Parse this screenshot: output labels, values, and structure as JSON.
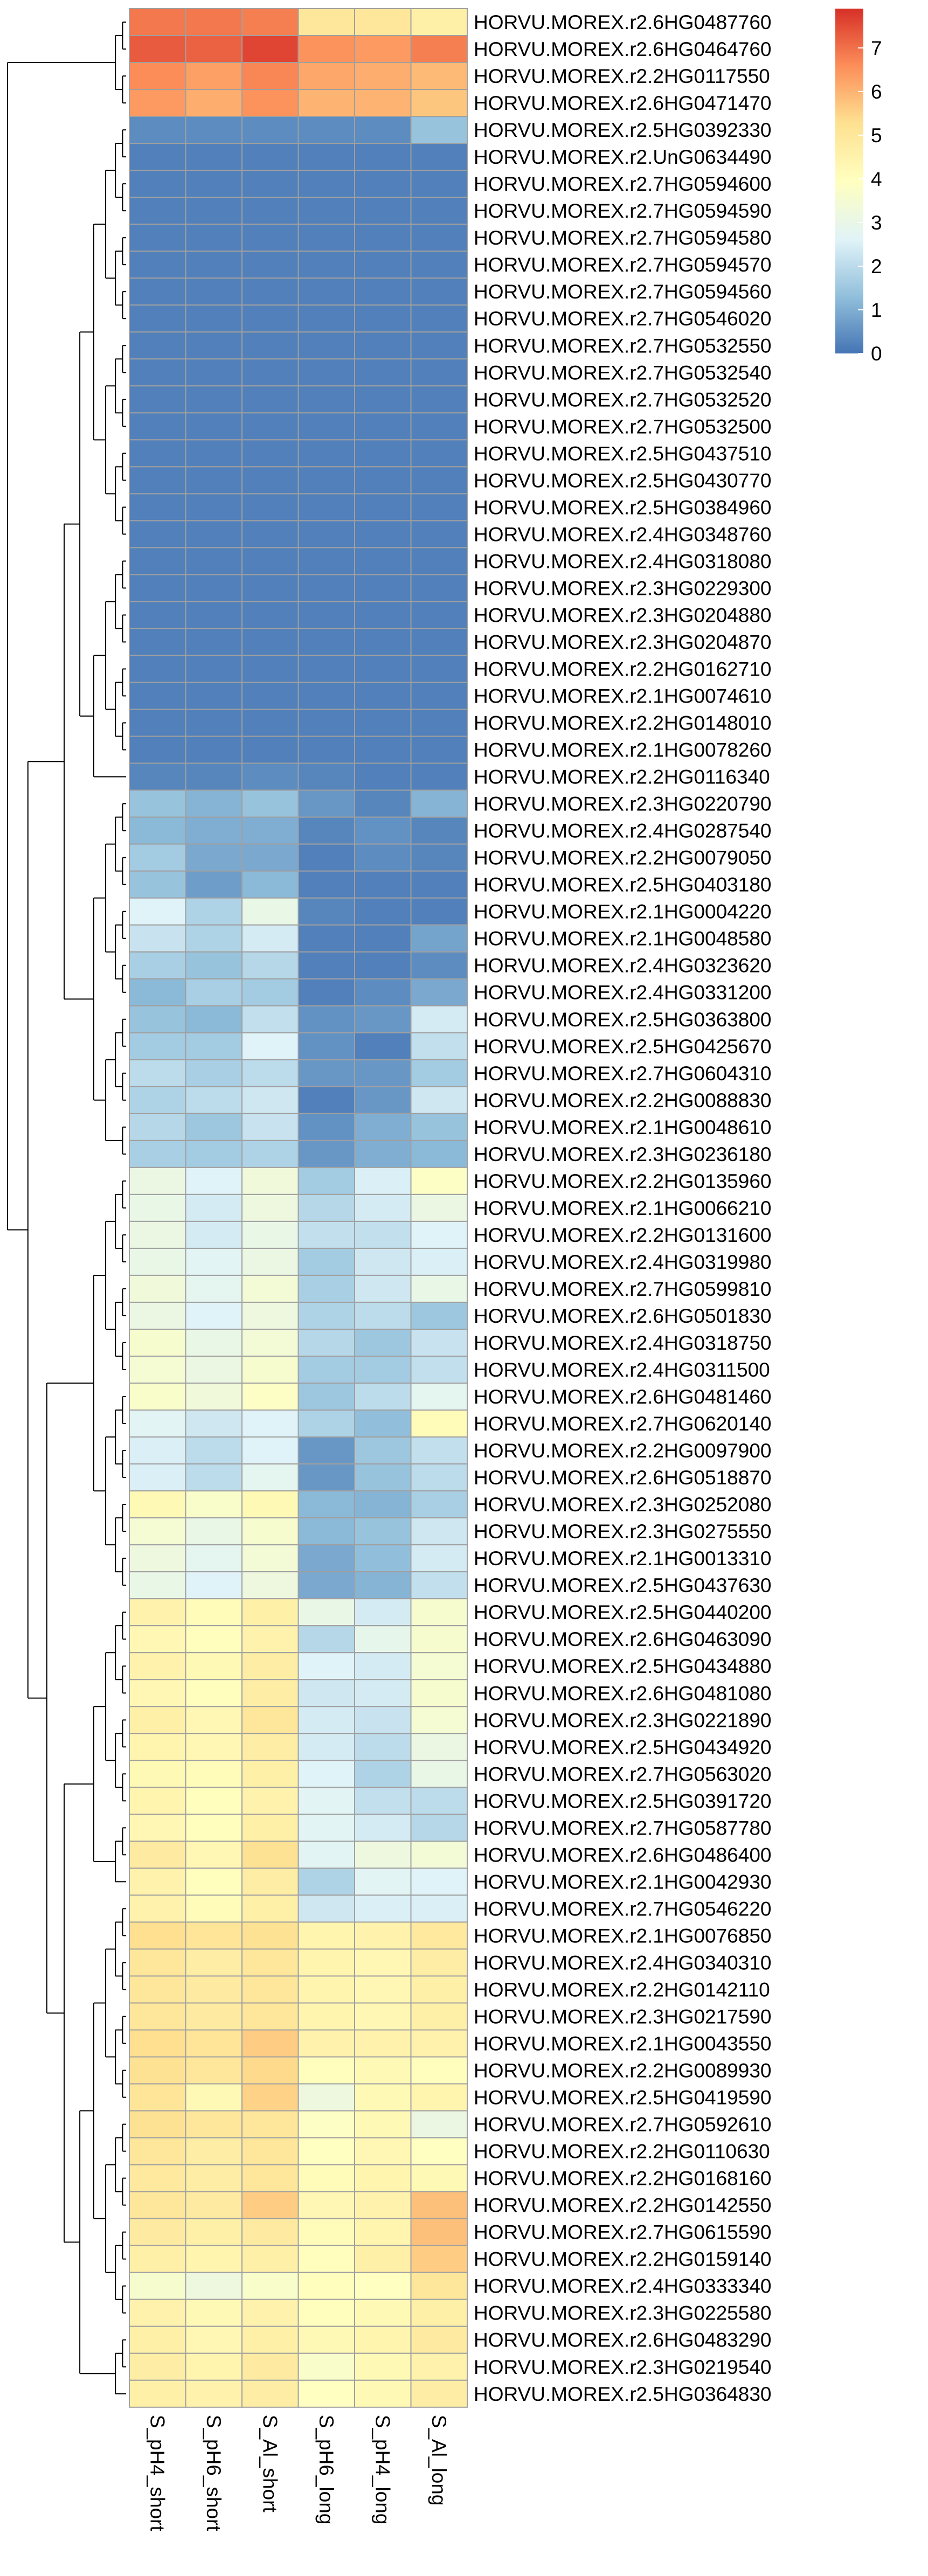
{
  "chart_data": {
    "type": "heatmap",
    "title": "",
    "columns": [
      "S_pH4_short",
      "S_pH6_short",
      "S_Al_short",
      "S_pH6_long",
      "S_pH4_long",
      "S_Al_long"
    ],
    "rows": [
      "HORVU.MOREX.r2.6HG0487760",
      "HORVU.MOREX.r2.6HG0464760",
      "HORVU.MOREX.r2.2HG0117550",
      "HORVU.MOREX.r2.6HG0471470",
      "HORVU.MOREX.r2.5HG0392330",
      "HORVU.MOREX.r2.UnG0634490",
      "HORVU.MOREX.r2.7HG0594600",
      "HORVU.MOREX.r2.7HG0594590",
      "HORVU.MOREX.r2.7HG0594580",
      "HORVU.MOREX.r2.7HG0594570",
      "HORVU.MOREX.r2.7HG0594560",
      "HORVU.MOREX.r2.7HG0546020",
      "HORVU.MOREX.r2.7HG0532550",
      "HORVU.MOREX.r2.7HG0532540",
      "HORVU.MOREX.r2.7HG0532520",
      "HORVU.MOREX.r2.7HG0532500",
      "HORVU.MOREX.r2.5HG0437510",
      "HORVU.MOREX.r2.5HG0430770",
      "HORVU.MOREX.r2.5HG0384960",
      "HORVU.MOREX.r2.4HG0348760",
      "HORVU.MOREX.r2.4HG0318080",
      "HORVU.MOREX.r2.3HG0229300",
      "HORVU.MOREX.r2.3HG0204880",
      "HORVU.MOREX.r2.3HG0204870",
      "HORVU.MOREX.r2.2HG0162710",
      "HORVU.MOREX.r2.1HG0074610",
      "HORVU.MOREX.r2.2HG0148010",
      "HORVU.MOREX.r2.1HG0078260",
      "HORVU.MOREX.r2.2HG0116340",
      "HORVU.MOREX.r2.3HG0220790",
      "HORVU.MOREX.r2.4HG0287540",
      "HORVU.MOREX.r2.2HG0079050",
      "HORVU.MOREX.r2.5HG0403180",
      "HORVU.MOREX.r2.1HG0004220",
      "HORVU.MOREX.r2.1HG0048580",
      "HORVU.MOREX.r2.4HG0323620",
      "HORVU.MOREX.r2.4HG0331200",
      "HORVU.MOREX.r2.5HG0363800",
      "HORVU.MOREX.r2.5HG0425670",
      "HORVU.MOREX.r2.7HG0604310",
      "HORVU.MOREX.r2.2HG0088830",
      "HORVU.MOREX.r2.1HG0048610",
      "HORVU.MOREX.r2.3HG0236180",
      "HORVU.MOREX.r2.2HG0135960",
      "HORVU.MOREX.r2.1HG0066210",
      "HORVU.MOREX.r2.2HG0131600",
      "HORVU.MOREX.r2.4HG0319980",
      "HORVU.MOREX.r2.7HG0599810",
      "HORVU.MOREX.r2.6HG0501830",
      "HORVU.MOREX.r2.4HG0318750",
      "HORVU.MOREX.r2.4HG0311500",
      "HORVU.MOREX.r2.6HG0481460",
      "HORVU.MOREX.r2.7HG0620140",
      "HORVU.MOREX.r2.2HG0097900",
      "HORVU.MOREX.r2.6HG0518870",
      "HORVU.MOREX.r2.3HG0252080",
      "HORVU.MOREX.r2.3HG0275550",
      "HORVU.MOREX.r2.1HG0013310",
      "HORVU.MOREX.r2.5HG0437630",
      "HORVU.MOREX.r2.5HG0440200",
      "HORVU.MOREX.r2.6HG0463090",
      "HORVU.MOREX.r2.5HG0434880",
      "HORVU.MOREX.r2.6HG0481080",
      "HORVU.MOREX.r2.3HG0221890",
      "HORVU.MOREX.r2.5HG0434920",
      "HORVU.MOREX.r2.7HG0563020",
      "HORVU.MOREX.r2.5HG0391720",
      "HORVU.MOREX.r2.7HG0587780",
      "HORVU.MOREX.r2.6HG0486400",
      "HORVU.MOREX.r2.1HG0042930",
      "HORVU.MOREX.r2.7HG0546220",
      "HORVU.MOREX.r2.1HG0076850",
      "HORVU.MOREX.r2.4HG0340310",
      "HORVU.MOREX.r2.2HG0142110",
      "HORVU.MOREX.r2.3HG0217590",
      "HORVU.MOREX.r2.1HG0043550",
      "HORVU.MOREX.r2.2HG0089930",
      "HORVU.MOREX.r2.5HG0419590",
      "HORVU.MOREX.r2.7HG0592610",
      "HORVU.MOREX.r2.2HG0110630",
      "HORVU.MOREX.r2.2HG0168160",
      "HORVU.MOREX.r2.2HG0142550",
      "HORVU.MOREX.r2.7HG0615590",
      "HORVU.MOREX.r2.2HG0159140",
      "HORVU.MOREX.r2.4HG0333340",
      "HORVU.MOREX.r2.3HG0225580",
      "HORVU.MOREX.r2.6HG0483290",
      "HORVU.MOREX.r2.3HG0219540",
      "HORVU.MOREX.r2.5HG0364830"
    ],
    "values": [
      [
        6.9,
        6.9,
        6.8,
        5.0,
        5.0,
        4.6
      ],
      [
        7.3,
        7.2,
        7.6,
        6.5,
        6.4,
        6.8
      ],
      [
        6.6,
        6.3,
        6.7,
        6.2,
        6.1,
        5.9
      ],
      [
        6.4,
        6.1,
        6.5,
        6.0,
        6.0,
        5.7
      ],
      [
        0.4,
        0.4,
        0.4,
        0.4,
        0.4,
        1.4
      ],
      [
        0.2,
        0.2,
        0.2,
        0.2,
        0.2,
        0.2
      ],
      [
        0.2,
        0.2,
        0.2,
        0.2,
        0.2,
        0.2
      ],
      [
        0.2,
        0.2,
        0.2,
        0.2,
        0.2,
        0.2
      ],
      [
        0.2,
        0.2,
        0.2,
        0.2,
        0.2,
        0.2
      ],
      [
        0.2,
        0.2,
        0.2,
        0.2,
        0.2,
        0.2
      ],
      [
        0.2,
        0.2,
        0.2,
        0.2,
        0.2,
        0.2
      ],
      [
        0.2,
        0.2,
        0.2,
        0.2,
        0.2,
        0.2
      ],
      [
        0.2,
        0.2,
        0.2,
        0.2,
        0.2,
        0.2
      ],
      [
        0.2,
        0.2,
        0.2,
        0.2,
        0.2,
        0.2
      ],
      [
        0.2,
        0.2,
        0.2,
        0.2,
        0.2,
        0.2
      ],
      [
        0.2,
        0.2,
        0.2,
        0.2,
        0.2,
        0.2
      ],
      [
        0.2,
        0.2,
        0.2,
        0.2,
        0.2,
        0.2
      ],
      [
        0.2,
        0.2,
        0.2,
        0.2,
        0.2,
        0.2
      ],
      [
        0.2,
        0.2,
        0.2,
        0.2,
        0.2,
        0.2
      ],
      [
        0.2,
        0.2,
        0.2,
        0.2,
        0.2,
        0.2
      ],
      [
        0.2,
        0.2,
        0.2,
        0.2,
        0.2,
        0.2
      ],
      [
        0.2,
        0.2,
        0.2,
        0.2,
        0.2,
        0.2
      ],
      [
        0.2,
        0.2,
        0.2,
        0.2,
        0.2,
        0.2
      ],
      [
        0.2,
        0.2,
        0.2,
        0.2,
        0.2,
        0.2
      ],
      [
        0.2,
        0.2,
        0.2,
        0.2,
        0.2,
        0.2
      ],
      [
        0.2,
        0.2,
        0.2,
        0.2,
        0.2,
        0.2
      ],
      [
        0.2,
        0.2,
        0.2,
        0.2,
        0.2,
        0.2
      ],
      [
        0.2,
        0.2,
        0.2,
        0.2,
        0.2,
        0.2
      ],
      [
        0.3,
        0.3,
        0.4,
        0.3,
        0.2,
        0.2
      ],
      [
        1.4,
        1.1,
        1.4,
        0.6,
        0.3,
        1.1
      ],
      [
        1.2,
        1.0,
        1.0,
        0.3,
        0.5,
        0.3
      ],
      [
        1.6,
        0.9,
        0.9,
        0.2,
        0.4,
        0.3
      ],
      [
        1.4,
        0.7,
        1.2,
        0.2,
        0.2,
        0.2
      ],
      [
        2.6,
        1.8,
        3.0,
        0.3,
        0.2,
        0.2
      ],
      [
        2.2,
        1.8,
        2.4,
        0.2,
        0.2,
        0.8
      ],
      [
        1.7,
        1.4,
        1.9,
        0.2,
        0.2,
        0.4
      ],
      [
        1.2,
        1.7,
        1.6,
        0.2,
        0.4,
        0.9
      ],
      [
        1.4,
        1.2,
        2.1,
        0.5,
        0.6,
        2.4
      ],
      [
        1.6,
        1.6,
        2.6,
        0.5,
        0.2,
        2.1
      ],
      [
        2.0,
        1.7,
        2.0,
        0.6,
        0.6,
        1.6
      ],
      [
        1.8,
        2.0,
        2.3,
        0.2,
        0.6,
        2.3
      ],
      [
        1.9,
        1.5,
        2.2,
        0.5,
        1.0,
        1.4
      ],
      [
        1.7,
        1.6,
        1.8,
        0.6,
        1.0,
        1.2
      ],
      [
        3.1,
        2.6,
        3.3,
        1.6,
        2.5,
        3.8
      ],
      [
        3.0,
        2.4,
        3.2,
        1.9,
        2.4,
        3.1
      ],
      [
        3.1,
        2.4,
        3.0,
        2.1,
        2.1,
        2.6
      ],
      [
        3.0,
        2.7,
        3.1,
        1.6,
        2.3,
        2.5
      ],
      [
        3.3,
        2.8,
        3.4,
        1.7,
        2.3,
        3.0
      ],
      [
        3.1,
        2.6,
        3.2,
        1.8,
        2.0,
        1.5
      ],
      [
        3.6,
        3.0,
        3.4,
        1.9,
        1.5,
        2.2
      ],
      [
        3.5,
        3.1,
        3.6,
        1.6,
        1.6,
        2.1
      ],
      [
        3.7,
        3.3,
        3.8,
        1.5,
        2.0,
        2.8
      ],
      [
        2.7,
        2.3,
        2.6,
        1.8,
        1.3,
        4.1
      ],
      [
        2.5,
        2.0,
        2.6,
        0.6,
        1.5,
        2.1
      ],
      [
        2.5,
        2.0,
        2.8,
        0.6,
        1.4,
        2.0
      ],
      [
        4.2,
        3.7,
        4.2,
        1.2,
        1.1,
        1.7
      ],
      [
        3.5,
        3.0,
        3.6,
        1.2,
        1.4,
        2.3
      ],
      [
        3.2,
        2.8,
        3.4,
        0.9,
        1.3,
        2.4
      ],
      [
        3.0,
        2.6,
        3.2,
        0.9,
        1.1,
        2.1
      ],
      [
        4.5,
        4.1,
        4.6,
        3.0,
        2.4,
        3.6
      ],
      [
        4.3,
        4.0,
        4.5,
        1.9,
        2.9,
        3.6
      ],
      [
        4.5,
        4.2,
        4.7,
        2.6,
        2.4,
        3.5
      ],
      [
        4.3,
        4.0,
        4.7,
        2.3,
        2.4,
        3.6
      ],
      [
        4.6,
        4.3,
        5.0,
        2.4,
        2.2,
        3.5
      ],
      [
        4.4,
        4.3,
        4.7,
        2.4,
        2.0,
        3.1
      ],
      [
        4.2,
        4.1,
        4.6,
        2.6,
        1.8,
        3.0
      ],
      [
        4.4,
        4.0,
        4.5,
        2.7,
        2.1,
        2.0
      ],
      [
        4.3,
        4.0,
        4.6,
        2.7,
        2.4,
        1.9
      ],
      [
        4.8,
        4.3,
        5.2,
        2.7,
        3.2,
        3.4
      ],
      [
        4.5,
        4.0,
        4.7,
        1.8,
        2.7,
        2.6
      ],
      [
        4.5,
        4.1,
        4.6,
        2.3,
        2.5,
        2.5
      ],
      [
        5.3,
        5.1,
        5.2,
        4.4,
        4.5,
        4.9
      ],
      [
        5.0,
        4.7,
        5.0,
        4.4,
        4.3,
        4.7
      ],
      [
        5.0,
        4.8,
        5.0,
        4.4,
        4.3,
        4.6
      ],
      [
        5.0,
        4.8,
        5.0,
        4.4,
        4.3,
        4.6
      ],
      [
        5.3,
        5.1,
        5.6,
        4.5,
        4.5,
        4.5
      ],
      [
        5.2,
        5.0,
        5.4,
        4.0,
        4.2,
        4.0
      ],
      [
        5.1,
        4.2,
        5.5,
        3.2,
        4.2,
        4.4
      ],
      [
        5.2,
        5.0,
        5.0,
        3.8,
        4.2,
        3.1
      ],
      [
        5.0,
        4.7,
        5.0,
        3.9,
        4.3,
        3.9
      ],
      [
        4.9,
        4.7,
        5.0,
        4.1,
        4.4,
        4.2
      ],
      [
        5.0,
        4.8,
        5.6,
        4.3,
        4.5,
        5.8
      ],
      [
        4.8,
        4.6,
        4.8,
        4.1,
        4.4,
        5.8
      ],
      [
        4.6,
        4.4,
        4.6,
        4.0,
        4.6,
        5.6
      ],
      [
        3.6,
        3.2,
        3.7,
        4.0,
        3.9,
        5.0
      ],
      [
        4.5,
        4.2,
        4.5,
        4.0,
        4.2,
        4.6
      ],
      [
        4.6,
        4.3,
        4.6,
        4.2,
        4.4,
        4.8
      ],
      [
        4.7,
        4.4,
        4.8,
        3.7,
        4.2,
        4.5
      ],
      [
        4.6,
        4.5,
        4.7,
        3.9,
        4.2,
        4.7
      ]
    ],
    "color_scale": {
      "min": 0,
      "max": 7.9,
      "stops": [
        {
          "value": 0,
          "color": "#4575b4"
        },
        {
          "value": 1.3,
          "color": "#91bfdb"
        },
        {
          "value": 2.6,
          "color": "#e0f3f8"
        },
        {
          "value": 3.95,
          "color": "#ffffbf"
        },
        {
          "value": 5.3,
          "color": "#fee090"
        },
        {
          "value": 6.6,
          "color": "#fc8d59"
        },
        {
          "value": 7.9,
          "color": "#d73027"
        }
      ]
    },
    "legend": {
      "position": "top-right",
      "ticks": [
        "0",
        "1",
        "2",
        "3",
        "4",
        "5",
        "6",
        "7"
      ],
      "tick_values": [
        0,
        1,
        2,
        3,
        4,
        5,
        6,
        7
      ]
    },
    "grid_color": "#a0a0a0",
    "row_dendrogram": true,
    "column_dendrogram": false
  }
}
